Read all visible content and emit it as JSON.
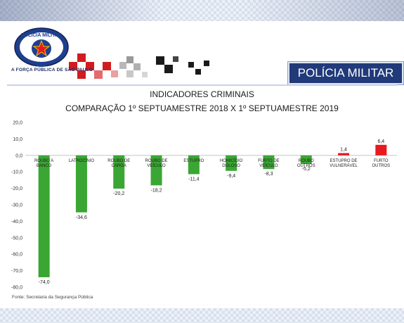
{
  "header": {
    "tagline": "A FORÇA PÚBLICA DE SÃO PAULO",
    "badge": "POLÍCIA MILITAR",
    "logo_text": "POLÍCIA MILITAR"
  },
  "chart_data": {
    "type": "bar",
    "title": "INDICADORES CRIMINAIS",
    "subtitle": "COMPARAÇÃO 1º SEPTUAMESTRE 2018  X  1º SEPTUAMESTRE 2019",
    "categories": [
      "ROUBO A BANCO",
      "LATROCÍNIO",
      "ROUBO DE CARGA",
      "ROUBO DE VEÍCULO",
      "ESTUPRO",
      "HOMICÍDIO DOLOSO",
      "FURTO DE VEÍCULO",
      "ROUBO OUTROS",
      "ESTUPRO DE VULNERÁVEL",
      "FURTO OUTROS"
    ],
    "values": [
      -74.0,
      -34.6,
      -20.2,
      -18.2,
      -11.4,
      -9.4,
      -8.3,
      -5.2,
      1.4,
      6.4
    ],
    "value_labels": [
      "-74,0",
      "-34,6",
      "-20,2",
      "-18,2",
      "-11,4",
      "-9,4",
      "-8,3",
      "-5,2",
      "1,4",
      "6,4"
    ],
    "ylim": [
      -80,
      20
    ],
    "yticks": [
      "20,0",
      "10,0",
      "0,0",
      "-10,0",
      "-20,0",
      "-30,0",
      "-40,0",
      "-50,0",
      "-60,0",
      "-70,0",
      "-80,0"
    ],
    "colors": {
      "negative": "#3aa633",
      "positive": "#e8191e"
    },
    "grid": false,
    "legend": "none"
  },
  "source": "Fonte: Secretaria da Segurança Pública"
}
